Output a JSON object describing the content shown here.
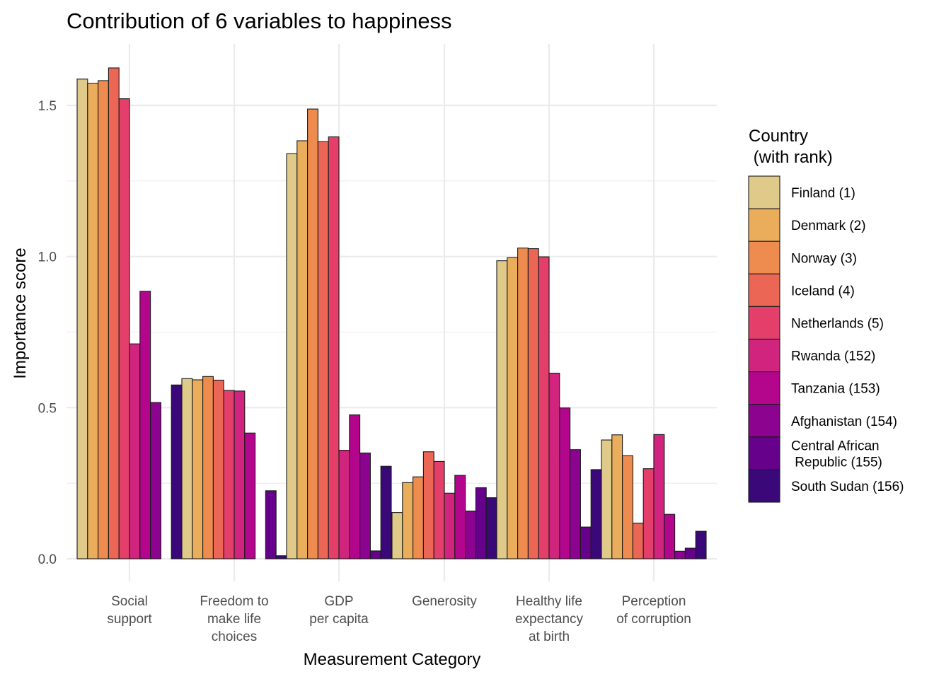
{
  "chart_data": {
    "type": "bar",
    "title": "Contribution of 6 variables to happiness",
    "xlabel": "Measurement Category",
    "ylabel": "Importance score",
    "ylim": [
      -0.0,
      1.65
    ],
    "yticks": [
      0.0,
      0.5,
      1.0,
      1.5
    ],
    "ytick_labels": [
      "0.0",
      "0.5",
      "1.0",
      "1.5"
    ],
    "grid": true,
    "categories": [
      [
        "Social",
        "support"
      ],
      [
        "Freedom to",
        "make life",
        "choices"
      ],
      [
        "GDP",
        "per capita"
      ],
      [
        "Generosity"
      ],
      [
        "Healthy life",
        "expectancy",
        "at birth"
      ],
      [
        "Perception",
        "of corruption"
      ]
    ],
    "legend": {
      "title": [
        "Country",
        " (with rank)"
      ],
      "position": "right"
    },
    "series": [
      {
        "name": [
          "Finland (1)"
        ],
        "color": "#E0CA8A",
        "values": [
          1.587,
          0.596,
          1.34,
          0.153,
          0.986,
          0.393
        ]
      },
      {
        "name": [
          "Denmark (2)"
        ],
        "color": "#EAAD5C",
        "values": [
          1.573,
          0.592,
          1.383,
          0.252,
          0.996,
          0.41
        ]
      },
      {
        "name": [
          "Norway (3)"
        ],
        "color": "#EE8B4E",
        "values": [
          1.582,
          0.603,
          1.488,
          0.271,
          1.028,
          0.341
        ]
      },
      {
        "name": [
          "Iceland (4)"
        ],
        "color": "#EB6655",
        "values": [
          1.624,
          0.591,
          1.38,
          0.354,
          1.026,
          0.118
        ]
      },
      {
        "name": [
          "Netherlands (5)"
        ],
        "color": "#E33F6A",
        "values": [
          1.522,
          0.557,
          1.396,
          0.322,
          0.999,
          0.298
        ]
      },
      {
        "name": [
          "Rwanda (152)"
        ],
        "color": "#D0247E",
        "values": [
          0.711,
          0.555,
          0.359,
          0.217,
          0.614,
          0.411
        ]
      },
      {
        "name": [
          "Tanzania (153)"
        ],
        "color": "#B3068D",
        "values": [
          0.885,
          0.416,
          0.476,
          0.276,
          0.499,
          0.147
        ]
      },
      {
        "name": [
          "Afghanistan (154)"
        ],
        "color": "#8B038F",
        "values": [
          0.517,
          0.0,
          0.35,
          0.158,
          0.361,
          0.025
        ]
      },
      {
        "name": [
          "Central African",
          " Republic (155)"
        ],
        "color": "#65018A",
        "values": [
          0.0,
          0.225,
          0.026,
          0.235,
          0.105,
          0.035
        ]
      },
      {
        "name": [
          "South Sudan (156)"
        ],
        "color": "#3A0878",
        "values": [
          0.575,
          0.01,
          0.306,
          0.202,
          0.295,
          0.091
        ]
      }
    ]
  }
}
